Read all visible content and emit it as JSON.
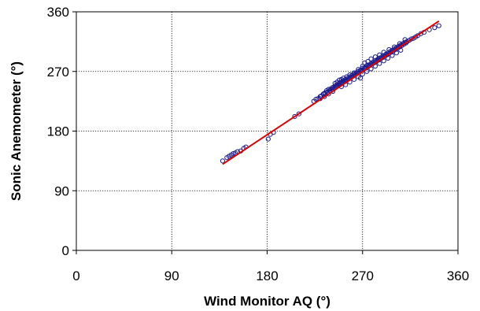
{
  "chart_data": {
    "type": "scatter",
    "title": "",
    "xlabel": "Wind Monitor AQ (°)",
    "ylabel": "Sonic Anemometer (°)",
    "xlim": [
      0,
      360
    ],
    "ylim": [
      0,
      360
    ],
    "xticks": [
      "0",
      "90",
      "180",
      "270",
      "360"
    ],
    "yticks": [
      "0",
      "90",
      "180",
      "270",
      "360"
    ],
    "grid": true,
    "legend": "none",
    "marker_color": "#1a1a8c",
    "fit_color": "#e00000",
    "series": [
      {
        "type": "scatter",
        "points": [
          [
            138,
            135
          ],
          [
            142,
            140
          ],
          [
            144,
            142
          ],
          [
            146,
            144
          ],
          [
            148,
            146
          ],
          [
            150,
            147
          ],
          [
            152,
            149
          ],
          [
            155,
            150
          ],
          [
            158,
            154
          ],
          [
            160,
            156
          ],
          [
            181,
            168
          ],
          [
            183,
            175
          ],
          [
            186,
            178
          ],
          [
            206,
            202
          ],
          [
            210,
            206
          ],
          [
            224,
            225
          ],
          [
            226,
            228
          ],
          [
            228,
            229
          ],
          [
            230,
            232
          ],
          [
            231,
            233
          ],
          [
            233,
            236
          ],
          [
            234,
            237
          ],
          [
            235,
            238
          ],
          [
            236,
            241
          ],
          [
            237,
            239
          ],
          [
            238,
            243
          ],
          [
            239,
            241
          ],
          [
            240,
            244
          ],
          [
            241,
            243
          ],
          [
            242,
            246
          ],
          [
            243,
            245
          ],
          [
            244,
            248
          ],
          [
            245,
            247
          ],
          [
            246,
            250
          ],
          [
            247,
            249
          ],
          [
            248,
            252
          ],
          [
            249,
            251
          ],
          [
            250,
            254
          ],
          [
            251,
            253
          ],
          [
            252,
            256
          ],
          [
            253,
            255
          ],
          [
            254,
            258
          ],
          [
            255,
            257
          ],
          [
            256,
            260
          ],
          [
            257,
            259
          ],
          [
            258,
            262
          ],
          [
            259,
            261
          ],
          [
            260,
            264
          ],
          [
            261,
            263
          ],
          [
            262,
            266
          ],
          [
            263,
            265
          ],
          [
            264,
            268
          ],
          [
            265,
            267
          ],
          [
            266,
            270
          ],
          [
            267,
            269
          ],
          [
            268,
            272
          ],
          [
            269,
            271
          ],
          [
            270,
            275
          ],
          [
            271,
            273
          ],
          [
            272,
            276
          ],
          [
            273,
            275
          ],
          [
            274,
            279
          ],
          [
            275,
            277
          ],
          [
            276,
            280
          ],
          [
            277,
            279
          ],
          [
            278,
            282
          ],
          [
            279,
            281
          ],
          [
            280,
            284
          ],
          [
            281,
            283
          ],
          [
            282,
            286
          ],
          [
            283,
            285
          ],
          [
            284,
            288
          ],
          [
            285,
            287
          ],
          [
            286,
            290
          ],
          [
            287,
            289
          ],
          [
            288,
            292
          ],
          [
            289,
            291
          ],
          [
            290,
            294
          ],
          [
            291,
            293
          ],
          [
            292,
            296
          ],
          [
            293,
            295
          ],
          [
            294,
            298
          ],
          [
            295,
            297
          ],
          [
            296,
            300
          ],
          [
            297,
            299
          ],
          [
            298,
            302
          ],
          [
            299,
            301
          ],
          [
            300,
            304
          ],
          [
            301,
            303
          ],
          [
            302,
            306
          ],
          [
            303,
            305
          ],
          [
            304,
            308
          ],
          [
            305,
            307
          ],
          [
            306,
            310
          ],
          [
            307,
            309
          ],
          [
            308,
            312
          ],
          [
            309,
            311
          ],
          [
            310,
            314
          ],
          [
            311,
            313
          ],
          [
            312,
            315
          ],
          [
            314,
            317
          ],
          [
            316,
            319
          ],
          [
            318,
            320
          ],
          [
            320,
            322
          ],
          [
            322,
            324
          ],
          [
            325,
            327
          ],
          [
            328,
            329
          ],
          [
            333,
            333
          ],
          [
            338,
            336
          ],
          [
            342,
            339
          ],
          [
            244,
            252
          ],
          [
            246,
            254
          ],
          [
            248,
            257
          ],
          [
            250,
            258
          ],
          [
            252,
            260
          ],
          [
            255,
            262
          ],
          [
            258,
            265
          ],
          [
            262,
            268
          ],
          [
            266,
            273
          ],
          [
            270,
            278
          ],
          [
            272,
            283
          ],
          [
            275,
            285
          ],
          [
            278,
            289
          ],
          [
            282,
            292
          ],
          [
            286,
            295
          ],
          [
            290,
            299
          ],
          [
            295,
            303
          ],
          [
            300,
            307
          ],
          [
            305,
            312
          ],
          [
            310,
            318
          ],
          [
            250,
            247
          ],
          [
            254,
            250
          ],
          [
            258,
            254
          ],
          [
            262,
            258
          ],
          [
            266,
            262
          ],
          [
            270,
            266
          ],
          [
            274,
            270
          ],
          [
            278,
            274
          ],
          [
            282,
            278
          ],
          [
            286,
            282
          ],
          [
            290,
            286
          ],
          [
            294,
            290
          ],
          [
            298,
            294
          ],
          [
            302,
            298
          ],
          [
            306,
            302
          ],
          [
            242,
            240
          ],
          [
            238,
            236
          ],
          [
            234,
            232
          ],
          [
            230,
            229
          ],
          [
            268,
            260
          ]
        ]
      },
      {
        "type": "line",
        "role": "fit",
        "x": [
          138,
          342
        ],
        "y": [
          130,
          346
        ]
      }
    ]
  }
}
